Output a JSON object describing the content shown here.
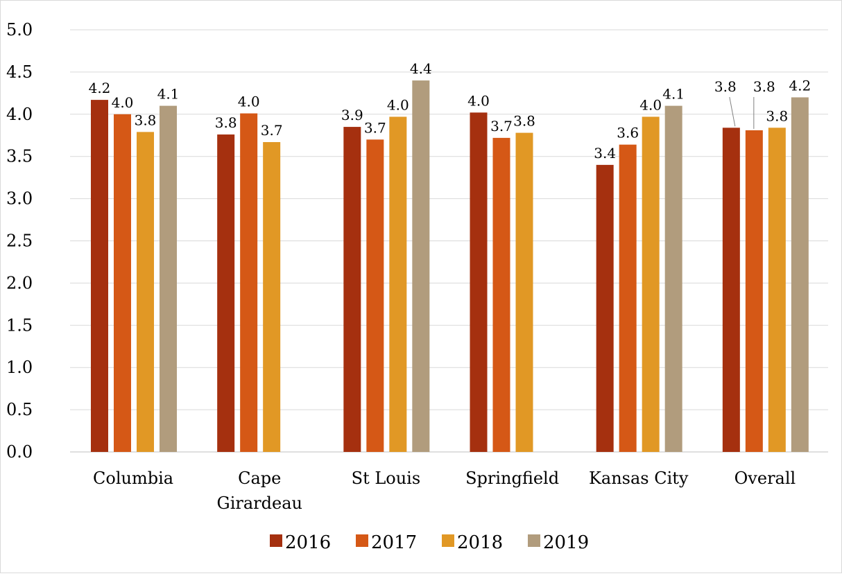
{
  "chart_data": {
    "type": "bar",
    "categories": [
      [
        "Columbia"
      ],
      [
        "Cape",
        "Girardeau"
      ],
      [
        "St Louis"
      ],
      [
        "Springfield"
      ],
      [
        "Kansas City"
      ],
      [
        "Overall"
      ]
    ],
    "series": [
      {
        "name": "2016",
        "color": "#A5300F",
        "values": [
          4.17,
          3.76,
          3.85,
          4.02,
          3.4,
          3.84
        ],
        "labels": [
          "4.2",
          "3.8",
          "3.9",
          "4.0",
          "3.4",
          "3.8"
        ]
      },
      {
        "name": "2017",
        "color": "#D55816",
        "values": [
          4.0,
          4.01,
          3.7,
          3.72,
          3.64,
          3.81
        ],
        "labels": [
          "4.0",
          "4.0",
          "3.7",
          "3.7",
          "3.6",
          "3.8"
        ]
      },
      {
        "name": "2018",
        "color": "#E19825",
        "values": [
          3.79,
          3.67,
          3.97,
          3.78,
          3.97,
          3.84
        ],
        "labels": [
          "3.8",
          "3.7",
          "4.0",
          "3.8",
          "4.0",
          "3.8"
        ]
      },
      {
        "name": "2019",
        "color": "#B19C7D",
        "values": [
          4.1,
          null,
          4.4,
          null,
          4.1,
          4.2
        ],
        "labels": [
          "4.1",
          "",
          "4.4",
          "",
          "4.1",
          "4.2"
        ]
      }
    ],
    "title": "",
    "xlabel": "",
    "ylabel": "",
    "ylim": [
      0,
      5
    ],
    "yticks": [
      "0.0",
      "0.5",
      "1.0",
      "1.5",
      "2.0",
      "2.5",
      "3.0",
      "3.5",
      "4.0",
      "4.5",
      "5.0"
    ],
    "grid": true,
    "legend_position": "bottom"
  }
}
